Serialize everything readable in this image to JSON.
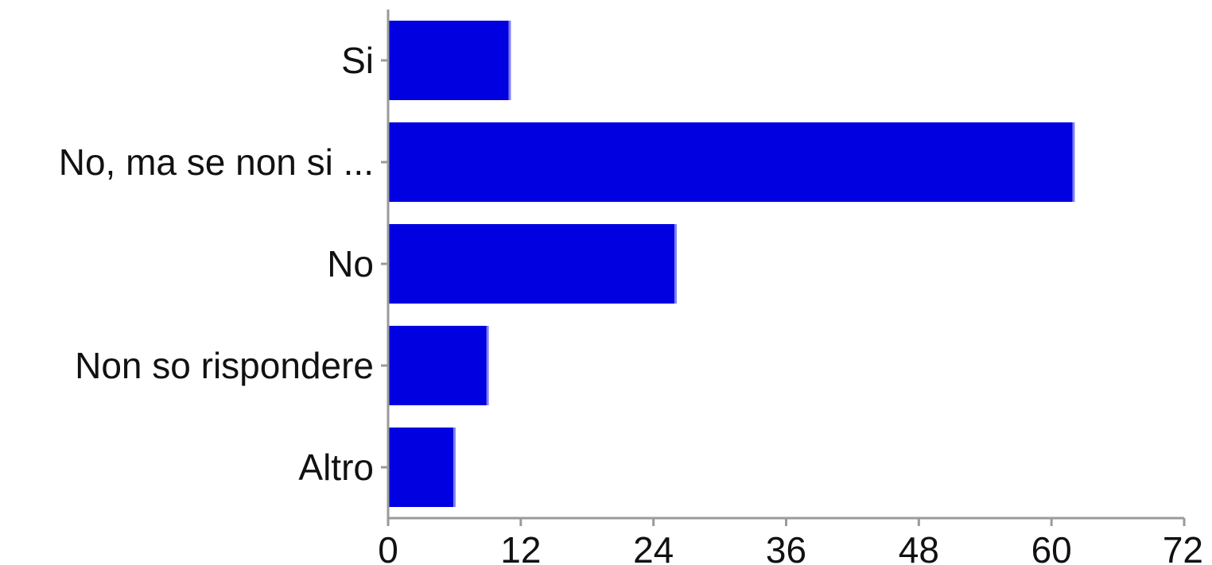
{
  "chart_data": {
    "type": "bar",
    "orientation": "horizontal",
    "title": "",
    "xlabel": "",
    "ylabel": "",
    "categories": [
      "Si",
      "No, ma se non si ...",
      "No",
      "Non so rispondere",
      "Altro"
    ],
    "values": [
      11,
      62,
      26,
      9,
      6
    ],
    "xlim": [
      0,
      72
    ],
    "xticks": [
      0,
      12,
      24,
      36,
      48,
      60,
      72
    ],
    "xtick_labels": [
      "0",
      "12",
      "24",
      "36",
      "48",
      "60",
      "72"
    ],
    "grid": false,
    "legend": "none",
    "bar_color": "#0000e0"
  }
}
